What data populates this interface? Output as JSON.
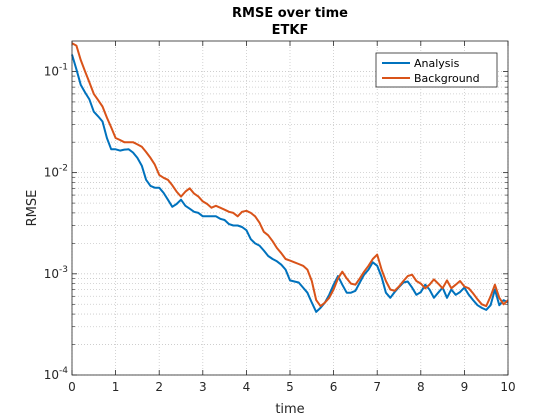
{
  "chart_data": {
    "type": "line",
    "title": "RMSE over time",
    "subtitle": "ETKF",
    "x_label": "time",
    "y_label": "RMSE",
    "x": [
      0,
      0.1,
      0.2,
      0.3,
      0.4,
      0.5,
      0.6,
      0.7,
      0.8,
      0.9,
      1,
      1.1,
      1.2,
      1.3,
      1.4,
      1.5,
      1.6,
      1.7,
      1.8,
      1.9,
      2,
      2.1,
      2.2,
      2.3,
      2.4,
      2.5,
      2.6,
      2.7,
      2.8,
      2.9,
      3,
      3.1,
      3.2,
      3.3,
      3.4,
      3.5,
      3.6,
      3.7,
      3.8,
      3.9,
      4,
      4.1,
      4.2,
      4.3,
      4.4,
      4.5,
      4.6,
      4.7,
      4.8,
      4.9,
      5,
      5.1,
      5.2,
      5.3,
      5.4,
      5.5,
      5.6,
      5.7,
      5.8,
      5.9,
      6,
      6.1,
      6.2,
      6.3,
      6.4,
      6.5,
      6.6,
      6.7,
      6.8,
      6.9,
      7,
      7.1,
      7.2,
      7.3,
      7.4,
      7.5,
      7.6,
      7.7,
      7.8,
      7.9,
      8,
      8.1,
      8.2,
      8.3,
      8.4,
      8.5,
      8.6,
      8.7,
      8.8,
      8.9,
      9,
      9.1,
      9.2,
      9.3,
      9.4,
      9.5,
      9.6,
      9.7,
      9.8,
      9.9,
      10
    ],
    "series": [
      {
        "name": "Analysis",
        "color": "#0072bd",
        "values": [
          0.147,
          0.105,
          0.074,
          0.062,
          0.053,
          0.04,
          0.036,
          0.032,
          0.022,
          0.017,
          0.017,
          0.0165,
          0.0169,
          0.017,
          0.0158,
          0.014,
          0.0117,
          0.0085,
          0.0074,
          0.0071,
          0.0071,
          0.0063,
          0.0054,
          0.0046,
          0.0049,
          0.0054,
          0.0047,
          0.0044,
          0.0041,
          0.004,
          0.0037,
          0.0037,
          0.0037,
          0.0037,
          0.0035,
          0.0034,
          0.0031,
          0.003,
          0.003,
          0.0029,
          0.0027,
          0.0022,
          0.002,
          0.0019,
          0.0017,
          0.0015,
          0.0014,
          0.00133,
          0.00123,
          0.0011,
          0.00086,
          0.00084,
          0.00082,
          0.00073,
          0.00065,
          0.00052,
          0.00042,
          0.00046,
          0.00052,
          0.00062,
          0.00078,
          0.00095,
          0.00078,
          0.00065,
          0.00065,
          0.00068,
          0.00082,
          0.00098,
          0.0011,
          0.0013,
          0.0012,
          0.00093,
          0.00065,
          0.00058,
          0.00066,
          0.00074,
          0.00082,
          0.00084,
          0.00073,
          0.00062,
          0.00066,
          0.00078,
          0.0007,
          0.00058,
          0.00065,
          0.00073,
          0.00058,
          0.0007,
          0.00062,
          0.00066,
          0.00073,
          0.00062,
          0.00055,
          0.00049,
          0.00046,
          0.00044,
          0.00049,
          0.0007,
          0.00049,
          0.00055,
          0.00052
        ]
      },
      {
        "name": "Background",
        "color": "#d95319",
        "values": [
          0.19,
          0.18,
          0.13,
          0.1,
          0.078,
          0.06,
          0.052,
          0.045,
          0.035,
          0.028,
          0.022,
          0.021,
          0.02,
          0.02,
          0.02,
          0.019,
          0.018,
          0.016,
          0.014,
          0.012,
          0.0095,
          0.0089,
          0.0085,
          0.0075,
          0.0065,
          0.0058,
          0.0065,
          0.007,
          0.0062,
          0.0058,
          0.0052,
          0.0049,
          0.0045,
          0.0047,
          0.0045,
          0.0043,
          0.0041,
          0.004,
          0.0037,
          0.0041,
          0.0042,
          0.004,
          0.0037,
          0.0032,
          0.0026,
          0.0024,
          0.0021,
          0.0018,
          0.0016,
          0.0014,
          0.00135,
          0.0013,
          0.00125,
          0.0012,
          0.0011,
          0.00085,
          0.00055,
          0.00048,
          0.00052,
          0.00058,
          0.0007,
          0.0009,
          0.00105,
          0.0009,
          0.0008,
          0.00078,
          0.0009,
          0.00105,
          0.0012,
          0.0014,
          0.00155,
          0.0011,
          0.00085,
          0.0007,
          0.00068,
          0.00075,
          0.00085,
          0.00095,
          0.00098,
          0.00085,
          0.0008,
          0.00072,
          0.00078,
          0.00088,
          0.0008,
          0.00072,
          0.00086,
          0.00072,
          0.00078,
          0.00085,
          0.00075,
          0.00072,
          0.00064,
          0.00056,
          0.0005,
          0.00048,
          0.0006,
          0.00078,
          0.00058,
          0.0005,
          0.00055
        ]
      }
    ],
    "xlim": [
      0,
      10
    ],
    "xticks": [
      0,
      1,
      2,
      3,
      4,
      5,
      6,
      7,
      8,
      9,
      10
    ],
    "ylim": [
      0.0001,
      0.2
    ],
    "y_scale": "log",
    "yticks": [
      {
        "value": 0.0001,
        "label": "10",
        "exponent": "-4"
      },
      {
        "value": 0.001,
        "label": "10",
        "exponent": "-3"
      },
      {
        "value": 0.01,
        "label": "10",
        "exponent": "-2"
      },
      {
        "value": 0.1,
        "label": "10",
        "exponent": "-1"
      }
    ],
    "grid": true,
    "minor_grid": true,
    "legend_position": "northeast"
  }
}
